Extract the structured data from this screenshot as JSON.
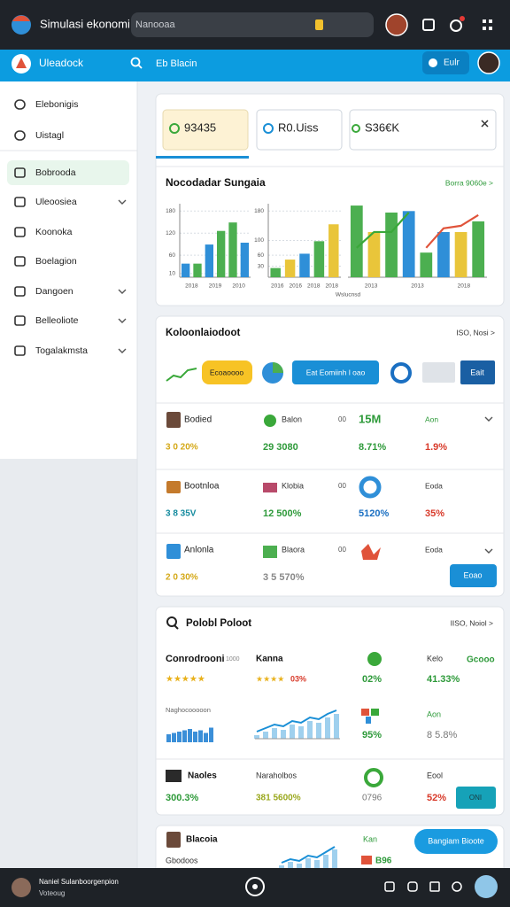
{
  "topbar": {
    "title": "Simulasi ekonomi",
    "search": "Nanooaa"
  },
  "header": {
    "title": "Uleadock",
    "search": "Eb Blacin",
    "button": "Eulr"
  },
  "sidebar": {
    "items": [
      "Elebonigis",
      "Uistagl",
      "Bobrooda",
      "Uleoosiea",
      "Koonoka",
      "Boelagion",
      "Dangoen",
      "Belleoliote",
      "Togalakmsta"
    ]
  },
  "summary": {
    "tabs": [
      "93435",
      "R0.Uiss",
      "S36€K"
    ],
    "title": "Nocodadar Sungaia",
    "link": "Borra 9060e >",
    "caption": "Wslucnsd",
    "charts": [
      {
        "ylim": [
          0,
          200
        ],
        "yticks": [
          180,
          120,
          60,
          10
        ],
        "xlabels": [
          "2018",
          "2019",
          "2010"
        ],
        "bars": [
          {
            "value": 37,
            "color": "#2f8fd8"
          },
          {
            "value": 37,
            "color": "#4caf50"
          },
          {
            "value": 89,
            "color": "#2f8fd8"
          },
          {
            "value": 126,
            "color": "#4caf50"
          },
          {
            "value": 149,
            "color": "#4caf50"
          },
          {
            "value": 94,
            "color": "#2f8fd8"
          }
        ]
      },
      {
        "ylim": [
          0,
          200
        ],
        "yticks": [
          180,
          100,
          60,
          30
        ],
        "xlabels": [
          "2016",
          "2016",
          "2018",
          "2018"
        ],
        "bars": [
          {
            "value": 25,
            "color": "#4caf50"
          },
          {
            "value": 48,
            "color": "#e9c53a"
          },
          {
            "value": 64,
            "color": "#2f8fd8"
          },
          {
            "value": 98,
            "color": "#4caf50"
          },
          {
            "value": 144,
            "color": "#e9c53a"
          }
        ]
      },
      {
        "ylim": [
          0,
          200
        ],
        "xlabels": [
          "2013",
          "2013",
          "2018"
        ],
        "bars": [
          {
            "value": 195,
            "color": "#4caf50"
          },
          {
            "value": 123,
            "color": "#e9c53a"
          },
          {
            "value": 176,
            "color": "#4caf50"
          },
          {
            "value": 180,
            "color": "#2f8fd8"
          },
          {
            "value": 67,
            "color": "#4caf50"
          },
          {
            "value": 123,
            "color": "#2f8fd8"
          },
          {
            "value": 123,
            "color": "#e9c53a"
          },
          {
            "value": 152,
            "color": "#4caf50"
          }
        ],
        "lines": [
          {
            "color": "#3aa83a",
            "values": [
              80,
              123,
              123,
              176
            ]
          },
          {
            "color": "#e0533a",
            "values": [
              80,
              133,
              140,
              169
            ]
          }
        ]
      }
    ]
  },
  "markets": {
    "title": "Koloonlaiodoot",
    "link": "ISO, Nosi >",
    "chips": [
      "Ecoaoooo",
      "Eat Eomiinh l oao",
      "Eait"
    ],
    "button": "Eoao",
    "rows": [
      {
        "name": "Bodied",
        "value": "3 0  20%",
        "asset": "Balon",
        "asset_value": "29  3080",
        "count": "00",
        "stat": "15M",
        "stat2": "8.71%",
        "label": "Aon",
        "change": "1.9%"
      },
      {
        "name": "Bootnloa",
        "value": "3 8  35V",
        "asset": "Klobia",
        "asset_value": "12  500%",
        "count": "00",
        "stat2": "5120%",
        "label": "Eoda",
        "change": "35%"
      },
      {
        "name": "Anlonla",
        "value": "2 0  30%",
        "asset": "Blaora",
        "asset_value": "3 5  570%",
        "count": "00",
        "label": "Eoda"
      }
    ]
  },
  "portfolio": {
    "title": "Polobl Poloot",
    "link": "IISO, Noiol >",
    "row1": {
      "name": "Conrodrooni",
      "count": "1000",
      "asset": "Kanna",
      "label": "Kelo",
      "badge": "Gcooo",
      "rating": "★★★★★",
      "asset_rating": "★★★★",
      "asset_change": "03%",
      "change": "02%",
      "total": "41.33%"
    },
    "row2": {
      "caption": "Naghocooooon",
      "color": "#3b8fd8",
      "bars": [
        6,
        7,
        8,
        9,
        10,
        8,
        9,
        7,
        11
      ],
      "trend": [
        4,
        6,
        8,
        7,
        10,
        9,
        12,
        11,
        14,
        16
      ],
      "label": "Aon",
      "change": "95%",
      "total": "8 5.8%"
    },
    "row3": {
      "name": "Naoles",
      "asset": "Naraholbos",
      "label": "Eool",
      "value": "300.3%",
      "asset_value": "381 5600%",
      "change": "0796",
      "total": "52%",
      "button": "ONI"
    }
  },
  "watch": {
    "name": "Blacoia",
    "sub": "Gbodoos",
    "label": "Kan",
    "value": "B96",
    "trend": [
      3,
      5,
      4,
      7,
      6,
      9,
      12
    ],
    "button": "Bangiam Bioote"
  },
  "footer": {
    "name": "Naniel Sulanboorgenpion",
    "sub": "Voteoug"
  }
}
